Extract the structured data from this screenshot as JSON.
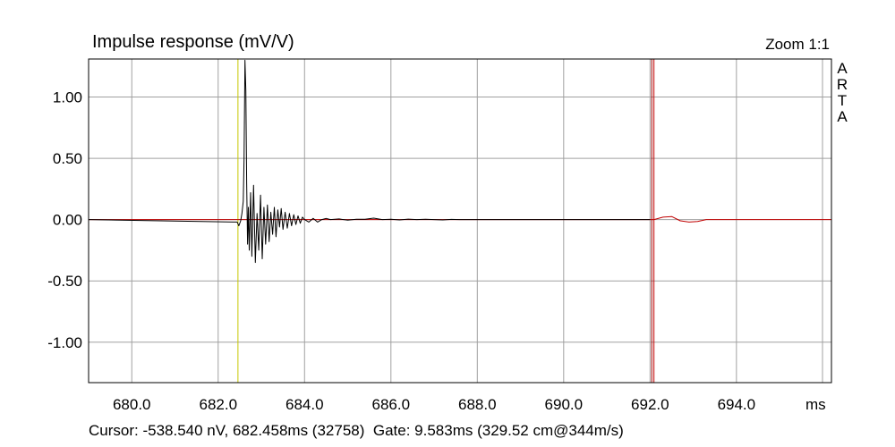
{
  "chart_data": {
    "type": "line",
    "title": "Impulse response (mV/V)",
    "zoom_label": "Zoom 1:1",
    "brand_vertical": [
      "A",
      "R",
      "T",
      "A"
    ],
    "xlabel": "ms",
    "x_ticks": [
      "680.0",
      "682.0",
      "684.0",
      "686.0",
      "688.0",
      "690.0",
      "692.0",
      "694.0"
    ],
    "x_tick_values": [
      680,
      682,
      684,
      686,
      688,
      690,
      692,
      694
    ],
    "y_ticks": [
      "1.00",
      "0.50",
      "0.00",
      "-0.50",
      "-1.00"
    ],
    "y_tick_values": [
      1.0,
      0.5,
      0.0,
      -0.5,
      -1.0
    ],
    "xlim": [
      679.0,
      696.2
    ],
    "ylim": [
      -1.33,
      1.31
    ],
    "grid": true,
    "markers": [
      {
        "name": "cursor",
        "x": 682.458,
        "color": "#c8c800"
      },
      {
        "name": "gate",
        "x": 692.04,
        "color": "#a00000"
      },
      {
        "name": "gate-end",
        "x": 692.09,
        "color": "#c00000"
      }
    ],
    "series": [
      {
        "color": "#000000",
        "x": [
          679.0,
          682.44,
          682.48,
          682.52,
          682.55,
          682.58,
          682.6,
          682.62,
          682.64,
          682.66,
          682.68,
          682.7,
          682.72,
          682.75,
          682.78,
          682.82,
          682.86,
          682.9,
          682.94,
          682.98,
          683.02,
          683.06,
          683.1,
          683.14,
          683.18,
          683.22,
          683.26,
          683.3,
          683.34,
          683.38,
          683.42,
          683.46,
          683.5,
          683.55,
          683.6,
          683.65,
          683.7,
          683.75,
          683.8,
          683.85,
          683.9,
          683.95,
          684.0,
          684.1,
          684.2,
          684.3,
          684.4,
          684.5,
          684.6,
          684.8,
          685.0,
          685.2,
          685.4,
          685.6,
          685.8,
          686.0,
          686.2,
          686.4,
          686.6,
          686.8,
          687.0,
          687.2,
          687.4,
          687.6,
          687.8,
          688.0,
          690.0,
          692.0
        ],
        "y": [
          0.0,
          -0.02,
          -0.05,
          -0.01,
          0.05,
          0.15,
          0.5,
          1.3,
          1.05,
          0.3,
          -0.2,
          0.1,
          -0.25,
          0.22,
          -0.3,
          0.28,
          -0.35,
          0.05,
          -0.25,
          0.2,
          -0.32,
          0.1,
          -0.2,
          0.12,
          -0.18,
          0.06,
          -0.12,
          0.1,
          -0.14,
          0.08,
          -0.06,
          0.09,
          -0.08,
          0.06,
          -0.07,
          0.05,
          -0.05,
          0.04,
          -0.04,
          0.03,
          -0.03,
          0.02,
          0.0,
          -0.02,
          0.01,
          -0.02,
          0.0,
          0.01,
          0.0,
          0.005,
          -0.005,
          0.003,
          0.003,
          0.012,
          0.0,
          0.003,
          -0.003,
          0.004,
          0.0,
          0.003,
          0.0,
          -0.003,
          0.002,
          0.0,
          0.0,
          0.0,
          0.0,
          0.0
        ]
      },
      {
        "color": "#c00000",
        "x": [
          679.0,
          682.44,
          692.09,
          692.3,
          692.5,
          692.7,
          692.9,
          693.1,
          693.3,
          696.2
        ],
        "y": [
          0.0,
          0.0,
          0.0,
          0.02,
          0.025,
          -0.01,
          -0.02,
          -0.015,
          0.0,
          0.0
        ]
      }
    ]
  },
  "status_bar": {
    "cursor_text": "Cursor: -538.540 nV, 682.458ms (32758)",
    "gate_text": "Gate: 9.583ms (329.52 cm@344m/s)"
  }
}
